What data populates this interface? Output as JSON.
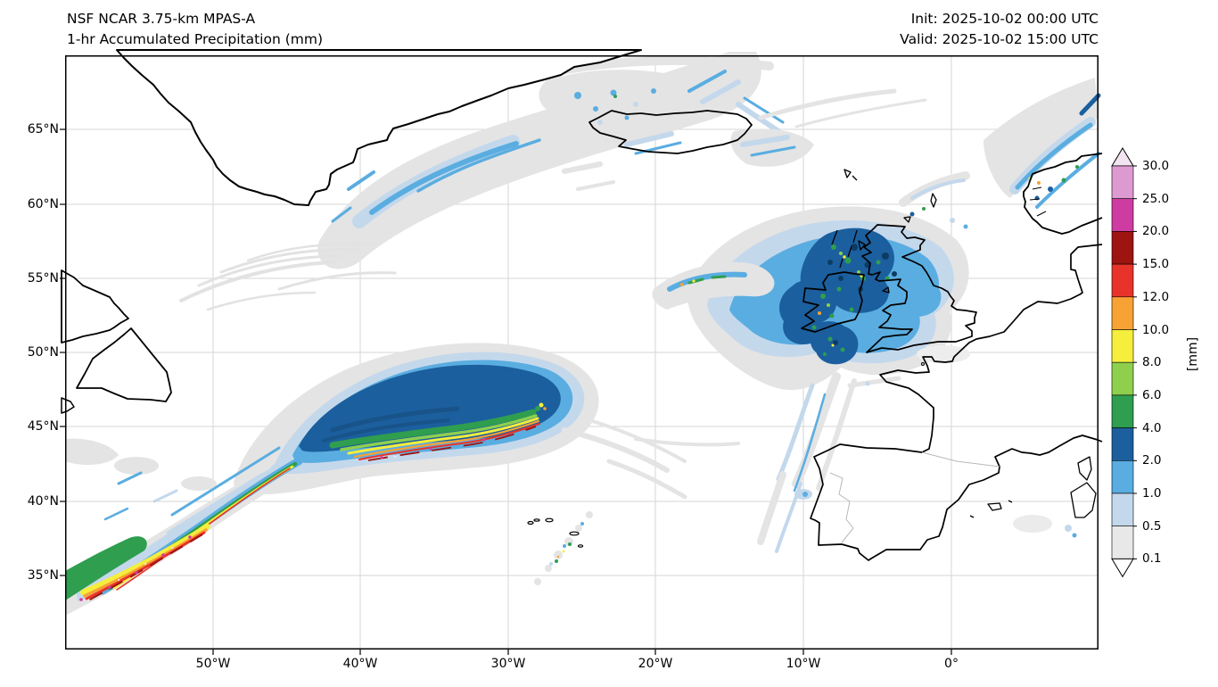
{
  "header": {
    "model_title": "NSF NCAR 3.75-km MPAS-A",
    "product_title": "1-hr Accumulated Precipitation (mm)",
    "init_time": "Init: 2025-10-02 00:00 UTC",
    "valid_time": "Valid: 2025-10-02 15:00 UTC"
  },
  "axes": {
    "lat_ticks": [
      "65°N",
      "60°N",
      "55°N",
      "50°N",
      "45°N",
      "40°N",
      "35°N"
    ],
    "lon_ticks": [
      "50°W",
      "40°W",
      "30°W",
      "20°W",
      "10°W",
      "0°"
    ]
  },
  "colorbar": {
    "unit_label": "[mm]",
    "tick_labels": [
      "30.0",
      "25.0",
      "20.0",
      "15.0",
      "12.0",
      "10.0",
      "8.0",
      "6.0",
      "4.0",
      "2.0",
      "1.0",
      "0.5",
      "0.1"
    ],
    "levels_mm": [
      0.1,
      0.5,
      1.0,
      2.0,
      4.0,
      6.0,
      8.0,
      10.0,
      12.0,
      15.0,
      20.0,
      25.0,
      30.0
    ],
    "colors_bottom_to_top": [
      "#e8e8e8",
      "#c4d8ec",
      "#5aade0",
      "#1b5f9e",
      "#2f9e4f",
      "#8ed04e",
      "#f5ee3c",
      "#f7a234",
      "#e8332a",
      "#9e1410",
      "#ce3ca2",
      "#dd9ad1"
    ],
    "over_color": "#f2e3f0",
    "under_color": "#ffffff"
  },
  "chart_data": {
    "type": "heatmap",
    "title": "1-hr Accumulated Precipitation (mm)",
    "units": "mm",
    "map_extent": {
      "lon_min": -60,
      "lon_max": 10,
      "lat_min": 30,
      "lat_max": 70
    },
    "contour_levels_mm": [
      0.1,
      0.5,
      1.0,
      2.0,
      4.0,
      6.0,
      8.0,
      10.0,
      12.0,
      15.0,
      20.0,
      25.0,
      30.0
    ],
    "level_colors": [
      "#e8e8e8",
      "#c4d8ec",
      "#5aade0",
      "#1b5f9e",
      "#2f9e4f",
      "#8ed04e",
      "#f5ee3c",
      "#f7a234",
      "#e8332a",
      "#9e1410",
      "#ce3ca2",
      "#dd9ad1"
    ],
    "features": [
      "Elongated frontal rainband across the central North Atlantic near 43-48N between 28W and 47W, broad 2-4 mm core with an intense narrow line of 8-20 mm along its southern edge",
      "Trailing cold front extending southwest toward 33N 60W with a narrow line exceeding 15-25 mm near the southwest corner of the map",
      "Widespread shower shield over Ireland and western Scotland with embedded 2-8 mm cores and isolated 10 mm cells",
      "Curved light-precipitation band hugging the southeast coast of Greenland with 1-2 mm streaks",
      "Scattered 0.5-2 mm showers around Iceland and along the Norwegian coast, isolated heavier cells near the coast of Norway",
      "Broken line of small convective cells (up to 6-10 mm) northeast of the Azores",
      "Extensive 0.1-0.5 mm stratiform fringes surrounding all precipitation systems"
    ]
  }
}
